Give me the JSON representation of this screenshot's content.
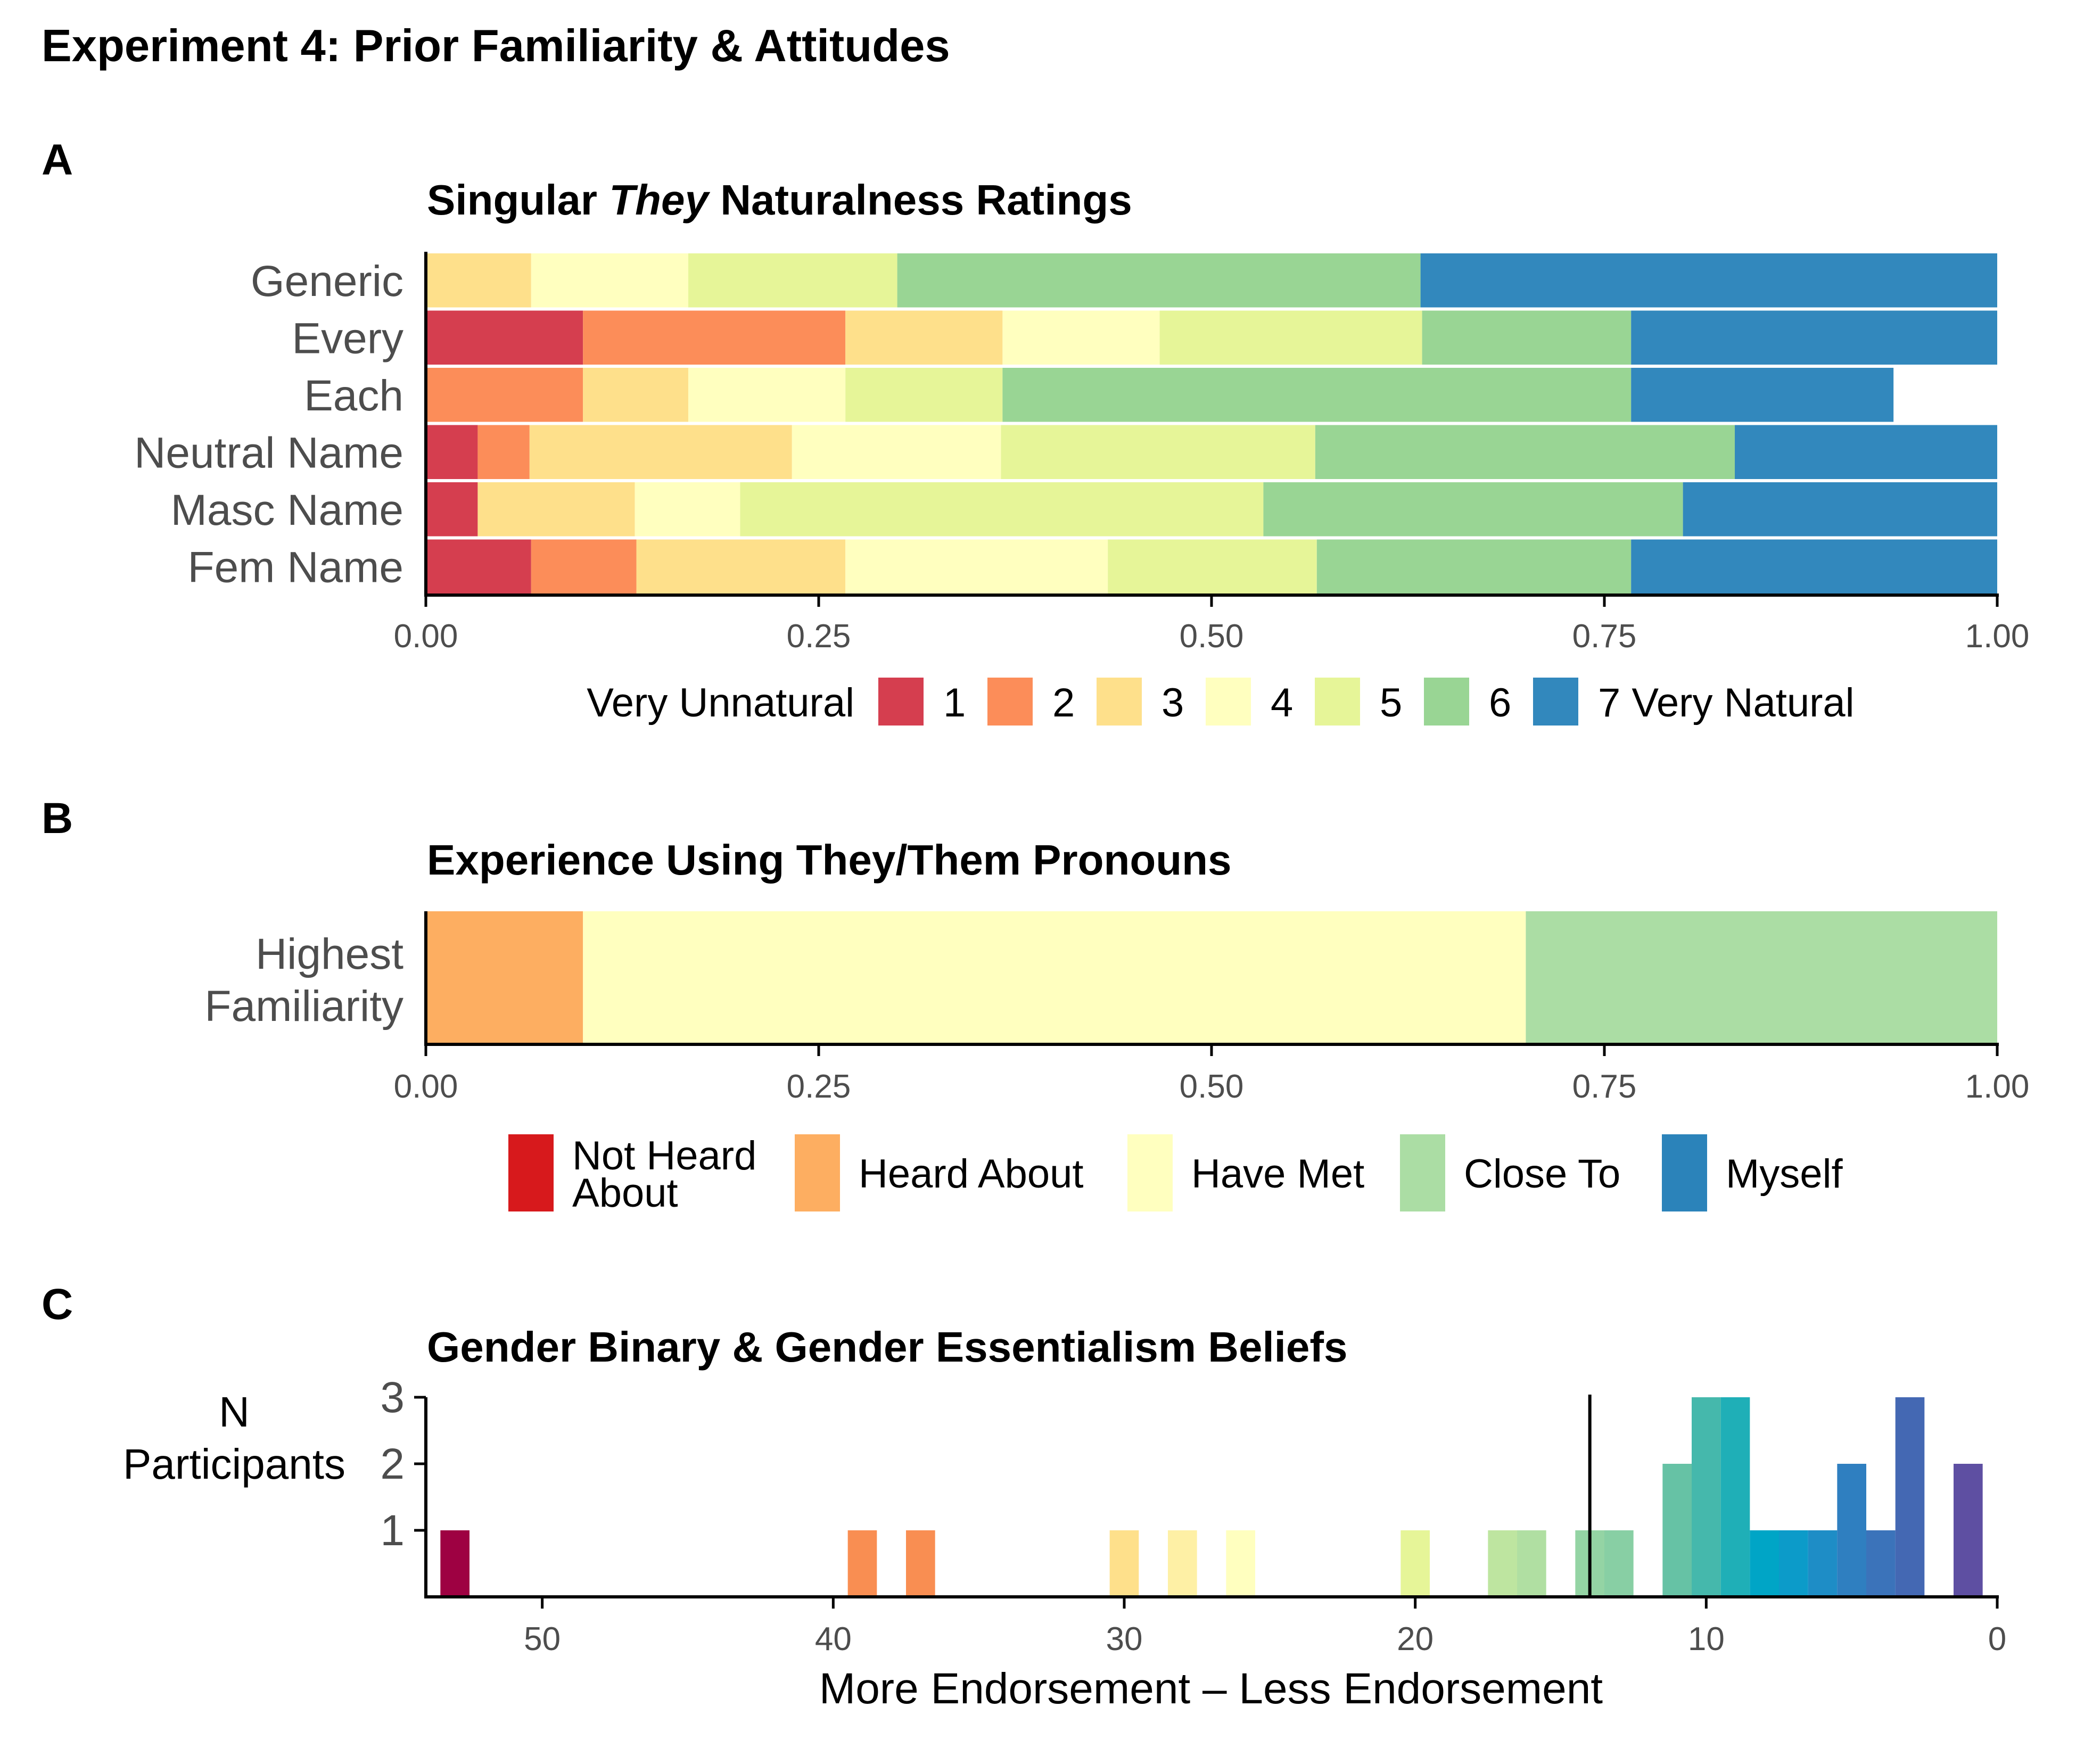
{
  "figure_title": "Experiment 4: Prior Familiarity & Attitudes",
  "panels": {
    "a": {
      "letter": "A",
      "title_pre": "Singular ",
      "title_em": "They",
      "title_post": " Naturalness Ratings"
    },
    "b": {
      "letter": "B",
      "title": "Experience Using They/Them Pronouns"
    },
    "c": {
      "letter": "C",
      "title": "Gender Binary & Gender Essentialism Beliefs"
    }
  },
  "chart_data": [
    {
      "type": "bar",
      "stacked": true,
      "orientation": "horizontal",
      "title": "Singular They Naturalness Ratings",
      "categories": [
        "Generic",
        "Every",
        "Each",
        "Neutral Name",
        "Masc Name",
        "Fem Name"
      ],
      "legend_title": "Very Unnatural",
      "legend_position": "bottom",
      "series": [
        {
          "name": "1",
          "color": "#D53E4F",
          "values": [
            0,
            0.1,
            0,
            0.033,
            0.033,
            0.067
          ]
        },
        {
          "name": "2",
          "color": "#FC8D59",
          "values": [
            0,
            0.167,
            0.1,
            0.033,
            0,
            0.067
          ]
        },
        {
          "name": "3",
          "color": "#FEE08B",
          "values": [
            0.067,
            0.1,
            0.067,
            0.167,
            0.1,
            0.133
          ]
        },
        {
          "name": "4",
          "color": "#FFFFBF",
          "values": [
            0.1,
            0.1,
            0.1,
            0.133,
            0.067,
            0.167
          ]
        },
        {
          "name": "5",
          "color": "#E6F598",
          "values": [
            0.133,
            0.167,
            0.1,
            0.2,
            0.333,
            0.133
          ]
        },
        {
          "name": "6",
          "color": "#99D594",
          "values": [
            0.333,
            0.133,
            0.4,
            0.267,
            0.267,
            0.2
          ]
        },
        {
          "name": "7 Very Natural",
          "color": "#3288BD",
          "values": [
            0.367,
            0.233,
            0.167,
            0.167,
            0.2,
            0.233
          ]
        }
      ],
      "xlim": [
        0,
        1
      ],
      "x_ticks": [
        "0.00",
        "0.25",
        "0.50",
        "0.75",
        "1.00"
      ],
      "x_tick_values": [
        0,
        0.25,
        0.5,
        0.75,
        1
      ]
    },
    {
      "type": "bar",
      "stacked": true,
      "orientation": "horizontal",
      "title": "Experience Using They/Them Pronouns",
      "categories": [
        "Highest\nFamiliarity"
      ],
      "category_lines": [
        "Highest",
        "Familiarity"
      ],
      "legend_position": "bottom",
      "series": [
        {
          "name": "Not Heard About",
          "name_lines": [
            "Not Heard",
            "About"
          ],
          "color": "#D7191C",
          "values": [
            0
          ]
        },
        {
          "name": "Heard About",
          "color": "#FDAE61",
          "values": [
            0.1
          ]
        },
        {
          "name": "Have Met",
          "color": "#FFFFBF",
          "values": [
            0.6
          ]
        },
        {
          "name": "Close To",
          "color": "#ABDDA4",
          "values": [
            0.3
          ]
        },
        {
          "name": "Myself",
          "color": "#2B83BA",
          "values": [
            0
          ]
        }
      ],
      "xlim": [
        0,
        1
      ],
      "x_ticks": [
        "0.00",
        "0.25",
        "0.50",
        "0.75",
        "1.00"
      ],
      "x_tick_values": [
        0,
        0.25,
        0.5,
        0.75,
        1
      ]
    },
    {
      "type": "bar",
      "title": "Gender Binary & Gender Essentialism Beliefs",
      "xlabel": "More Endorsement – Less Endorsement",
      "ylabel": "N\nParticipants",
      "ylabel_lines": [
        "N",
        "Participants"
      ],
      "x_reversed": true,
      "xlim": [
        54,
        0
      ],
      "ylim": [
        0,
        3
      ],
      "y_ticks": [
        "1",
        "2",
        "3"
      ],
      "y_tick_values": [
        1,
        2,
        3
      ],
      "x_ticks": [
        "50",
        "40",
        "30",
        "20",
        "10",
        "0"
      ],
      "x_tick_values": [
        50,
        40,
        30,
        20,
        10,
        0
      ],
      "cutoff_line": 14,
      "bin_width": 1,
      "bins": [
        {
          "x": 53,
          "count": 1,
          "color": "#9E0142"
        },
        {
          "x": 39,
          "count": 1,
          "color": "#F98E52"
        },
        {
          "x": 37,
          "count": 1,
          "color": "#F98E52"
        },
        {
          "x": 30,
          "count": 1,
          "color": "#FEE08B"
        },
        {
          "x": 28,
          "count": 1,
          "color": "#FEF0A5"
        },
        {
          "x": 26,
          "count": 1,
          "color": "#FFFFBF"
        },
        {
          "x": 20,
          "count": 1,
          "color": "#E6F598"
        },
        {
          "x": 17,
          "count": 1,
          "color": "#BEE5A0"
        },
        {
          "x": 16,
          "count": 1,
          "color": "#B0DFA2"
        },
        {
          "x": 14,
          "count": 1,
          "color": "#94D4A4"
        },
        {
          "x": 13,
          "count": 1,
          "color": "#88CFA4"
        },
        {
          "x": 11,
          "count": 2,
          "color": "#66C2A5"
        },
        {
          "x": 10,
          "count": 3,
          "color": "#45B8AC"
        },
        {
          "x": 9,
          "count": 3,
          "color": "#1FAFB7"
        },
        {
          "x": 8,
          "count": 1,
          "color": "#00A5C6"
        },
        {
          "x": 7,
          "count": 1,
          "color": "#0C9BC9"
        },
        {
          "x": 6,
          "count": 1,
          "color": "#1E8DC6"
        },
        {
          "x": 5,
          "count": 2,
          "color": "#2F7FC0"
        },
        {
          "x": 4,
          "count": 1,
          "color": "#3B73BA"
        },
        {
          "x": 3,
          "count": 3,
          "color": "#4468B3"
        },
        {
          "x": 1,
          "count": 2,
          "color": "#5E4FA2"
        }
      ]
    }
  ]
}
